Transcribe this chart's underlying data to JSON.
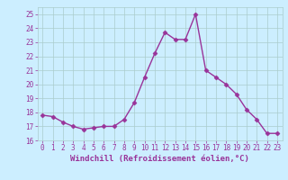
{
  "x": [
    0,
    1,
    2,
    3,
    4,
    5,
    6,
    7,
    8,
    9,
    10,
    11,
    12,
    13,
    14,
    15,
    16,
    17,
    18,
    19,
    20,
    21,
    22,
    23
  ],
  "y": [
    17.8,
    17.7,
    17.3,
    17.0,
    16.8,
    16.9,
    17.0,
    17.0,
    17.5,
    18.7,
    20.5,
    22.2,
    23.7,
    23.2,
    23.2,
    25.0,
    21.0,
    20.5,
    20.0,
    19.3,
    18.2,
    17.5,
    16.5,
    16.5
  ],
  "line_color": "#993399",
  "marker": "D",
  "marker_size": 2.5,
  "bg_color": "#cceeff",
  "grid_color": "#aacccc",
  "xlabel": "Windchill (Refroidissement éolien,°C)",
  "ylim": [
    16,
    25.5
  ],
  "yticks": [
    16,
    17,
    18,
    19,
    20,
    21,
    22,
    23,
    24,
    25
  ],
  "xticks": [
    0,
    1,
    2,
    3,
    4,
    5,
    6,
    7,
    8,
    9,
    10,
    11,
    12,
    13,
    14,
    15,
    16,
    17,
    18,
    19,
    20,
    21,
    22,
    23
  ],
  "tick_color": "#993399",
  "tick_fontsize": 5.5,
  "xlabel_fontsize": 6.5,
  "line_width": 1.0
}
